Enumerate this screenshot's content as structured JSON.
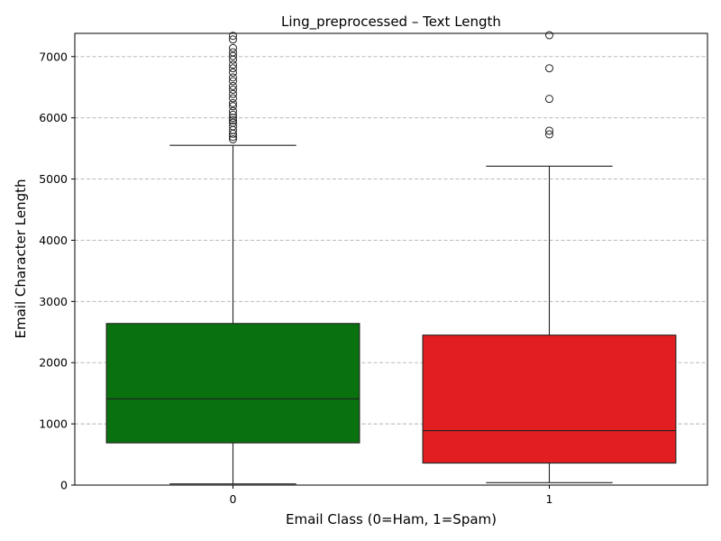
{
  "chart_data": {
    "type": "box",
    "title": "Ling_preprocessed – Text Length",
    "xlabel": "Email Class (0=Ham, 1=Spam)",
    "ylabel": "Email Character Length",
    "ylim": [
      0,
      7380
    ],
    "yticks": [
      0,
      1000,
      2000,
      3000,
      4000,
      5000,
      6000,
      7000
    ],
    "grid": "y-dashed",
    "categories": [
      "0",
      "1"
    ],
    "boxes": [
      {
        "category": "0",
        "color": "#0a710f",
        "whisker_low": 20,
        "q1": 690,
        "median": 1410,
        "q3": 2640,
        "whisker_high": 5550,
        "outliers": [
          5650,
          5690,
          5740,
          5800,
          5860,
          5920,
          5960,
          6000,
          6050,
          6110,
          6190,
          6240,
          6320,
          6390,
          6460,
          6520,
          6600,
          6660,
          6740,
          6810,
          6870,
          6950,
          7010,
          7070,
          7140,
          7280,
          7340
        ]
      },
      {
        "category": "1",
        "color": "#e31e20",
        "whisker_low": 40,
        "q1": 360,
        "median": 890,
        "q3": 2450,
        "whisker_high": 5210,
        "outliers": [
          5730,
          5790,
          6310,
          6810,
          7350
        ]
      }
    ]
  }
}
